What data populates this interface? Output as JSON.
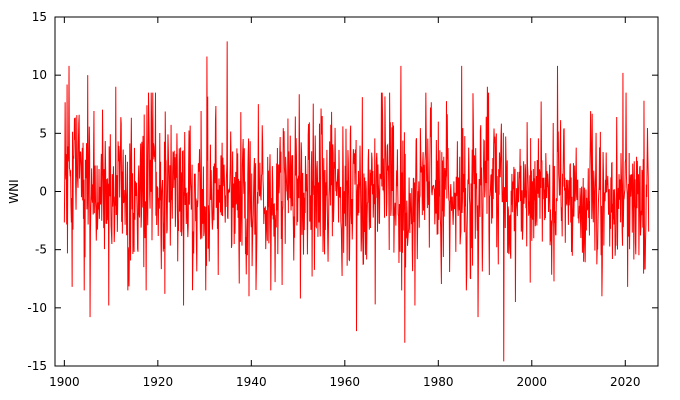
{
  "chart_data": {
    "type": "line",
    "title": "",
    "xlabel": "",
    "ylabel": "WNI",
    "xlim": [
      1898,
      2027
    ],
    "ylim": [
      -15,
      15
    ],
    "xticks": [
      1900,
      1920,
      1940,
      1960,
      1980,
      2000,
      2020
    ],
    "yticks": [
      -15,
      -10,
      -5,
      0,
      5,
      10,
      15
    ],
    "grid": false,
    "legend": "none",
    "colors": {
      "series": "#ff0000",
      "axes": "#000000",
      "background": "#ffffff"
    },
    "x_start": 1900.0,
    "x_end": 2025.0,
    "anchor_points": [
      {
        "x": 1900.1,
        "y": 1.2
      },
      {
        "x": 1900.6,
        "y": 9.2
      },
      {
        "x": 1901.0,
        "y": 10.8
      },
      {
        "x": 1901.7,
        "y": -8.2
      },
      {
        "x": 1905.0,
        "y": 10.0
      },
      {
        "x": 1905.5,
        "y": -10.8
      },
      {
        "x": 1909.5,
        "y": -9.8
      },
      {
        "x": 1911.0,
        "y": 9.0
      },
      {
        "x": 1917.0,
        "y": -6.5
      },
      {
        "x": 1921.5,
        "y": -8.8
      },
      {
        "x": 1925.5,
        "y": -9.8
      },
      {
        "x": 1930.5,
        "y": 11.6
      },
      {
        "x": 1934.8,
        "y": 12.9
      },
      {
        "x": 1939.5,
        "y": -9.0
      },
      {
        "x": 1950.5,
        "y": -9.2
      },
      {
        "x": 1962.5,
        "y": -12.0
      },
      {
        "x": 1966.5,
        "y": -9.7
      },
      {
        "x": 1972.0,
        "y": 10.8
      },
      {
        "x": 1972.8,
        "y": -13.0
      },
      {
        "x": 1975.0,
        "y": -9.8
      },
      {
        "x": 1985.0,
        "y": 10.8
      },
      {
        "x": 1988.5,
        "y": -10.8
      },
      {
        "x": 1990.5,
        "y": 9.0
      },
      {
        "x": 1994.0,
        "y": -14.6
      },
      {
        "x": 1996.5,
        "y": -9.5
      },
      {
        "x": 2005.5,
        "y": 10.8
      },
      {
        "x": 2015.0,
        "y": -9.0
      },
      {
        "x": 2019.5,
        "y": 10.2
      },
      {
        "x": 2020.5,
        "y": -8.2
      },
      {
        "x": 2024.0,
        "y": 7.8
      },
      {
        "x": 2024.8,
        "y": 3.0
      }
    ]
  }
}
